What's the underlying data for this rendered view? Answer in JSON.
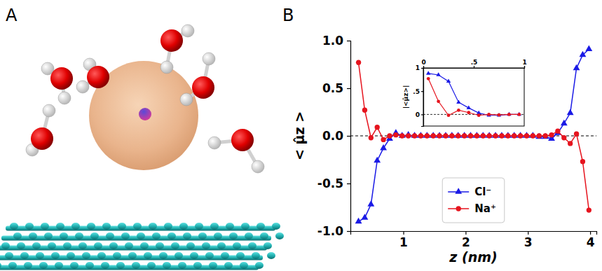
{
  "panel_labels": [
    "A",
    "B"
  ],
  "chart_data": [
    {
      "type": "line",
      "x_label": "z (nm)",
      "y_label": "< μ̂z >",
      "x": [
        0.28,
        0.38,
        0.48,
        0.58,
        0.68,
        0.78,
        0.88,
        0.98,
        1.08,
        1.18,
        1.28,
        1.38,
        1.48,
        1.58,
        1.68,
        1.78,
        1.88,
        1.98,
        2.08,
        2.18,
        2.28,
        2.38,
        2.48,
        2.58,
        2.68,
        2.78,
        2.88,
        2.98,
        3.08,
        3.18,
        3.28,
        3.38,
        3.48,
        3.58,
        3.68,
        3.78,
        3.88,
        3.98
      ],
      "xlim": [
        0.15,
        4.1
      ],
      "xticks": [
        1,
        2,
        3,
        4
      ],
      "ylim": [
        -1.0,
        1.0
      ],
      "yticks": [
        {
          "value": -1.0,
          "label": "-1.0"
        },
        -0.5,
        {
          "value": 0.0,
          "label": "0.0"
        },
        0.5,
        {
          "value": 1.0,
          "label": "1.0"
        }
      ],
      "hlines": [
        0
      ],
      "legend": "lower center",
      "series": [
        {
          "name": "Cl⁻",
          "color": "#1a1ae6",
          "marker": "triangle",
          "values": [
            -0.9,
            -0.86,
            -0.72,
            -0.26,
            -0.13,
            -0.03,
            0.03,
            0.0,
            0.01,
            0.0,
            0.0,
            0.0,
            0.0,
            0.0,
            0.0,
            0.0,
            0.0,
            0.0,
            0.0,
            0.0,
            0.0,
            0.0,
            0.0,
            0.0,
            0.0,
            0.0,
            0.0,
            0.0,
            0.0,
            -0.01,
            -0.01,
            -0.03,
            0.03,
            0.13,
            0.24,
            0.71,
            0.85,
            0.91
          ]
        },
        {
          "name": "Na⁺",
          "color": "#e6141e",
          "marker": "circle",
          "values": [
            0.77,
            0.27,
            -0.02,
            0.09,
            -0.04,
            0.0,
            0.01,
            0.0,
            0.0,
            0.0,
            0.0,
            0.0,
            0.0,
            0.0,
            0.0,
            0.0,
            0.0,
            0.0,
            0.0,
            0.0,
            0.0,
            0.0,
            0.0,
            0.0,
            0.0,
            0.0,
            0.0,
            0.0,
            0.0,
            0.0,
            0.0,
            0.01,
            0.05,
            -0.02,
            -0.08,
            0.02,
            -0.27,
            -0.78
          ]
        }
      ]
    },
    {
      "type": "line",
      "y_label": "|<μ̂z>|",
      "x": [
        0.05,
        0.15,
        0.25,
        0.35,
        0.45,
        0.55,
        0.65,
        0.75,
        0.85,
        0.95
      ],
      "xlim": [
        0,
        1
      ],
      "xticks": [
        0,
        {
          "value": 0.5,
          "label": ".5"
        },
        1
      ],
      "ylim": [
        -0.25,
        1
      ],
      "yticks": [
        0,
        {
          "value": 0.5,
          "label": ".5"
        },
        1
      ],
      "hlines": [
        0
      ],
      "series": [
        {
          "color": "#1a1ae6",
          "marker": "triangle",
          "values": [
            0.88,
            0.85,
            0.71,
            0.26,
            0.14,
            0.03,
            -0.02,
            -0.02,
            0.0,
            0.0
          ]
        },
        {
          "color": "#e6141e",
          "marker": "circle",
          "values": [
            0.77,
            0.28,
            -0.02,
            0.09,
            0.04,
            -0.02,
            0.0,
            -0.01,
            0.0,
            0.0
          ]
        }
      ]
    }
  ]
}
